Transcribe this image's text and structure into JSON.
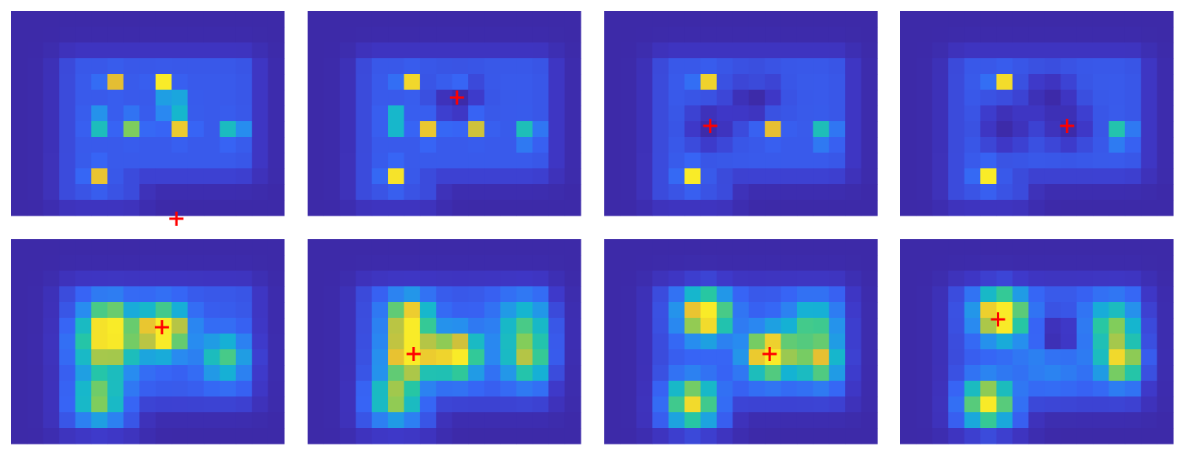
{
  "chart_data": {
    "type": "heatmap",
    "colormap": "parula",
    "grid": {
      "rows": 13,
      "cols": 17
    },
    "marker": {
      "shape": "plus",
      "color": "#ff0000"
    },
    "colors": {
      "low": "#3d2aa8",
      "high": "#f9e72a",
      "marker": "#ff0000"
    },
    "panels": [
      {
        "id": "top-1",
        "marker_cell": {
          "row": 12.7,
          "col": 9.8
        },
        "blobs": [
          {
            "row": 4.0,
            "col": 5.8,
            "amp": 0.75,
            "sigma": 0.35
          },
          {
            "row": 4.2,
            "col": 9.0,
            "amp": 0.95,
            "sigma": 0.35
          },
          {
            "row": 5.5,
            "col": 9.6,
            "amp": 0.65,
            "sigma": 0.45
          },
          {
            "row": 6.6,
            "col": 5.0,
            "amp": 0.55,
            "sigma": 0.4
          },
          {
            "row": 6.8,
            "col": 7.1,
            "amp": 0.6,
            "sigma": 0.4
          },
          {
            "row": 6.9,
            "col": 10.0,
            "amp": 0.7,
            "sigma": 0.4
          },
          {
            "row": 7.1,
            "col": 13.4,
            "amp": 0.55,
            "sigma": 0.4
          },
          {
            "row": 10.0,
            "col": 4.9,
            "amp": 0.7,
            "sigma": 0.4
          }
        ],
        "holes": []
      },
      {
        "id": "top-2",
        "marker_cell": {
          "row": 5.0,
          "col": 8.8
        },
        "blobs": [
          {
            "row": 4.0,
            "col": 5.8,
            "amp": 0.85,
            "sigma": 0.35
          },
          {
            "row": 4.0,
            "col": 8.6,
            "amp": 0.6,
            "sigma": 0.35
          },
          {
            "row": 6.5,
            "col": 5.0,
            "amp": 0.65,
            "sigma": 0.4
          },
          {
            "row": 7.0,
            "col": 7.1,
            "amp": 0.7,
            "sigma": 0.4
          },
          {
            "row": 6.8,
            "col": 9.9,
            "amp": 0.75,
            "sigma": 0.4
          },
          {
            "row": 7.3,
            "col": 13.3,
            "amp": 0.6,
            "sigma": 0.4
          },
          {
            "row": 10.0,
            "col": 4.9,
            "amp": 0.8,
            "sigma": 0.4
          }
        ],
        "holes": [
          {
            "row": 5.0,
            "col": 8.8,
            "sigma": 0.9
          }
        ]
      },
      {
        "id": "top-3",
        "marker_cell": {
          "row": 6.8,
          "col": 6.1
        },
        "blobs": [
          {
            "row": 4.0,
            "col": 5.8,
            "amp": 0.85,
            "sigma": 0.35
          },
          {
            "row": 4.0,
            "col": 8.6,
            "amp": 0.5,
            "sigma": 0.3
          },
          {
            "row": 6.9,
            "col": 9.9,
            "amp": 0.75,
            "sigma": 0.4
          },
          {
            "row": 7.3,
            "col": 13.3,
            "amp": 0.6,
            "sigma": 0.4
          },
          {
            "row": 10.0,
            "col": 4.9,
            "amp": 0.85,
            "sigma": 0.4
          }
        ],
        "holes": [
          {
            "row": 5.0,
            "col": 8.8,
            "sigma": 1.0
          },
          {
            "row": 6.8,
            "col": 6.1,
            "sigma": 0.9
          }
        ]
      },
      {
        "id": "top-4",
        "marker_cell": {
          "row": 6.8,
          "col": 9.9
        },
        "blobs": [
          {
            "row": 4.0,
            "col": 5.8,
            "amp": 0.9,
            "sigma": 0.35
          },
          {
            "row": 7.3,
            "col": 13.3,
            "amp": 0.65,
            "sigma": 0.4
          },
          {
            "row": 10.0,
            "col": 4.9,
            "amp": 0.85,
            "sigma": 0.4
          }
        ],
        "holes": [
          {
            "row": 5.0,
            "col": 8.8,
            "sigma": 1.0
          },
          {
            "row": 6.8,
            "col": 6.1,
            "sigma": 1.0
          },
          {
            "row": 6.8,
            "col": 9.9,
            "sigma": 0.9
          }
        ]
      },
      {
        "id": "bottom-1",
        "marker_cell": {
          "row": 5.1,
          "col": 8.9
        },
        "blobs": [
          {
            "row": 5.3,
            "col": 9.0,
            "amp": 1.0,
            "sigma": 1.0
          },
          {
            "row": 6.2,
            "col": 5.5,
            "amp": 0.7,
            "sigma": 1.3
          },
          {
            "row": 4.6,
            "col": 5.6,
            "amp": 0.45,
            "sigma": 0.9
          },
          {
            "row": 7.0,
            "col": 12.8,
            "amp": 0.45,
            "sigma": 1.0
          },
          {
            "row": 9.7,
            "col": 5.0,
            "amp": 0.55,
            "sigma": 1.0
          }
        ],
        "holes": []
      },
      {
        "id": "bottom-2",
        "marker_cell": {
          "row": 6.8,
          "col": 6.1
        },
        "blobs": [
          {
            "row": 4.5,
            "col": 5.8,
            "amp": 0.8,
            "sigma": 0.9
          },
          {
            "row": 6.8,
            "col": 5.9,
            "amp": 0.95,
            "sigma": 1.0
          },
          {
            "row": 6.8,
            "col": 8.8,
            "amp": 0.85,
            "sigma": 1.0
          },
          {
            "row": 7.2,
            "col": 13.2,
            "amp": 0.5,
            "sigma": 1.0
          },
          {
            "row": 9.6,
            "col": 5.0,
            "amp": 0.6,
            "sigma": 1.0
          },
          {
            "row": 5.0,
            "col": 13.0,
            "amp": 0.4,
            "sigma": 1.2
          }
        ],
        "holes": []
      },
      {
        "id": "bottom-3",
        "marker_cell": {
          "row": 6.8,
          "col": 9.8
        },
        "blobs": [
          {
            "row": 4.3,
            "col": 5.8,
            "amp": 0.95,
            "sigma": 1.0
          },
          {
            "row": 6.8,
            "col": 9.8,
            "amp": 0.95,
            "sigma": 1.0
          },
          {
            "row": 7.3,
            "col": 12.9,
            "amp": 0.6,
            "sigma": 0.9
          },
          {
            "row": 9.9,
            "col": 5.0,
            "amp": 0.75,
            "sigma": 1.0
          },
          {
            "row": 5.0,
            "col": 12.5,
            "amp": 0.45,
            "sigma": 1.1
          }
        ],
        "holes": []
      },
      {
        "id": "bottom-4",
        "marker_cell": {
          "row": 4.6,
          "col": 5.6
        },
        "blobs": [
          {
            "row": 4.3,
            "col": 5.8,
            "amp": 1.0,
            "sigma": 1.0
          },
          {
            "row": 7.3,
            "col": 13.3,
            "amp": 0.7,
            "sigma": 0.9
          },
          {
            "row": 5.0,
            "col": 12.8,
            "amp": 0.5,
            "sigma": 1.1
          },
          {
            "row": 9.9,
            "col": 5.0,
            "amp": 0.8,
            "sigma": 1.0
          },
          {
            "row": 6.6,
            "col": 9.0,
            "amp": 0.25,
            "sigma": 1.4
          }
        ],
        "holes": [
          {
            "row": 5.6,
            "col": 9.3,
            "sigma": 1.0
          }
        ]
      }
    ]
  }
}
